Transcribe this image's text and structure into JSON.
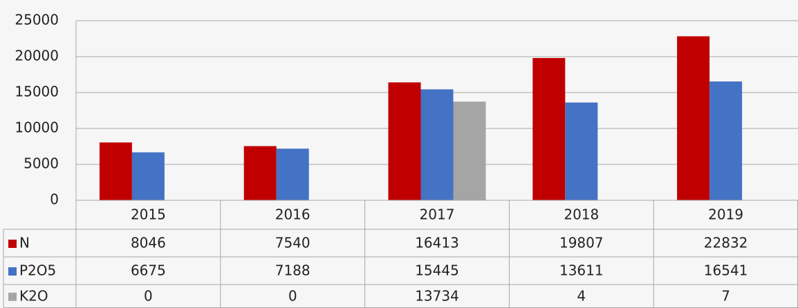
{
  "chart_data": {
    "type": "bar",
    "categories": [
      "2015",
      "2016",
      "2017",
      "2018",
      "2019"
    ],
    "series": [
      {
        "name": "N",
        "color": "#c00000",
        "values": [
          8046,
          7540,
          16413,
          19807,
          22832
        ]
      },
      {
        "name": "P2O5",
        "color": "#4472c4",
        "values": [
          6675,
          7188,
          15445,
          13611,
          16541
        ]
      },
      {
        "name": "K2O",
        "color": "#a5a5a5",
        "values": [
          0,
          0,
          13734,
          4,
          7
        ]
      }
    ],
    "ylim": [
      0,
      25000
    ],
    "yticks": [
      0,
      5000,
      10000,
      15000,
      20000,
      25000
    ],
    "grid": true,
    "data_table": true
  }
}
